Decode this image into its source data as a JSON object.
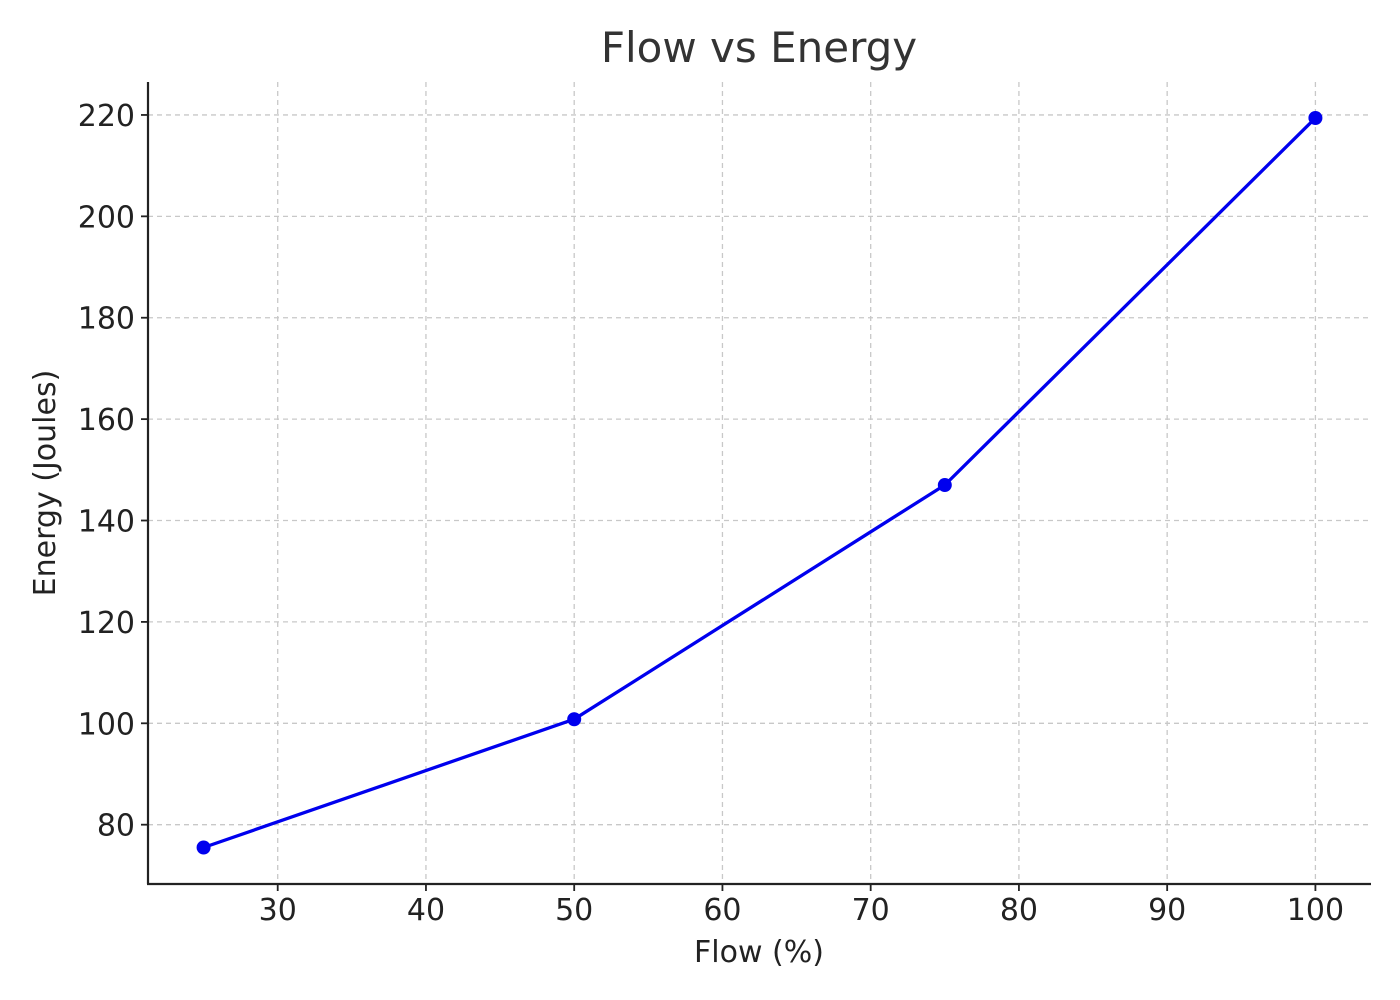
{
  "chart_data": {
    "type": "line",
    "title": "Flow vs Energy",
    "xlabel": "Flow (%)",
    "ylabel": "Energy (Joules)",
    "x": [
      25,
      50,
      75,
      100
    ],
    "series": [
      {
        "values": [
          75.5,
          100.8,
          147.0,
          219.4
        ],
        "color": "#0000ee",
        "marker": "circle"
      }
    ],
    "xlim": [
      21.25,
      103.75
    ],
    "ylim": [
      68.3,
      226.5
    ],
    "xticks": [
      30,
      40,
      50,
      60,
      70,
      80,
      90,
      100
    ],
    "yticks": [
      80,
      100,
      120,
      140,
      160,
      180,
      200,
      220
    ],
    "grid": true,
    "grid_style": "dashed",
    "legend": "none"
  }
}
